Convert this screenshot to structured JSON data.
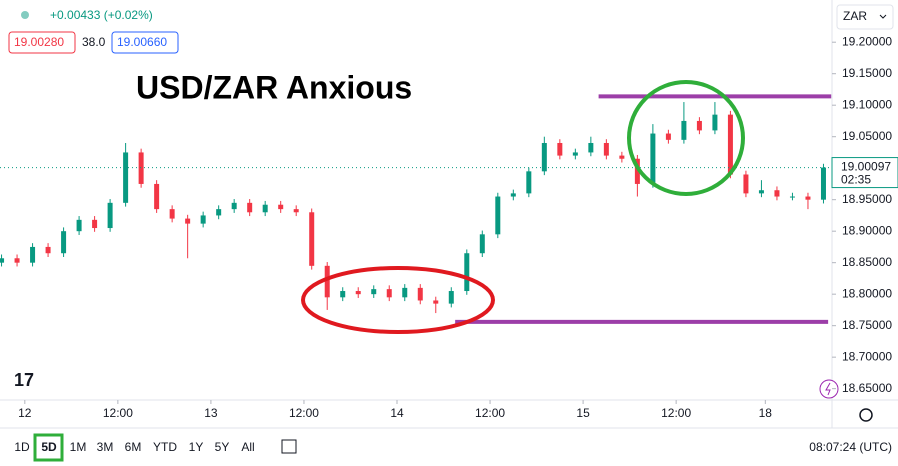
{
  "header": {
    "change": "+0.00433 (+0.02%)",
    "bid": "19.00280",
    "spread": "38.0",
    "ask": "19.00660",
    "currency": "ZAR"
  },
  "chart_data": {
    "type": "candlestick",
    "title": "USD/ZAR Anxious",
    "x": [
      -3,
      -1,
      1,
      3,
      5,
      7,
      9,
      11,
      13,
      15,
      17,
      19,
      21,
      23,
      25,
      27,
      29,
      31,
      33,
      35,
      37,
      39,
      41,
      43,
      45,
      47,
      49,
      51,
      53,
      55,
      57,
      59,
      61,
      63,
      65,
      67,
      69,
      71,
      73,
      75,
      77,
      79,
      81,
      83,
      85,
      87,
      89,
      91,
      93,
      95,
      97,
      99,
      101,
      103
    ],
    "open": [
      18.85,
      18.857,
      18.85,
      18.875,
      18.865,
      18.9,
      18.918,
      18.905,
      18.945,
      19.025,
      18.975,
      18.935,
      18.92,
      18.912,
      18.925,
      18.935,
      18.945,
      18.93,
      18.942,
      18.935,
      18.93,
      18.845,
      18.795,
      18.805,
      18.8,
      18.808,
      18.795,
      18.81,
      18.79,
      18.785,
      18.805,
      18.865,
      18.895,
      18.955,
      18.96,
      18.995,
      19.04,
      19.02,
      19.025,
      19.04,
      19.02,
      19.015,
      18.975,
      19.055,
      19.045,
      19.075,
      19.06,
      19.085,
      18.99,
      18.96,
      18.965,
      18.955,
      18.955,
      18.95
    ],
    "high": [
      18.863,
      18.863,
      18.881,
      18.881,
      18.906,
      18.924,
      18.924,
      18.951,
      19.04,
      19.031,
      18.981,
      18.941,
      18.926,
      18.931,
      18.941,
      18.951,
      18.951,
      18.948,
      18.948,
      18.941,
      18.936,
      18.851,
      18.811,
      18.811,
      18.814,
      18.814,
      18.816,
      18.816,
      18.796,
      18.811,
      18.871,
      18.901,
      18.961,
      18.966,
      19.001,
      19.05,
      19.046,
      19.031,
      19.05,
      19.046,
      19.026,
      19.021,
      19.07,
      19.061,
      19.105,
      19.081,
      19.105,
      19.091,
      18.996,
      18.981,
      18.971,
      18.961,
      18.961,
      19.007
    ],
    "low": [
      18.844,
      18.844,
      18.844,
      18.859,
      18.859,
      18.894,
      18.899,
      18.899,
      18.939,
      18.969,
      18.929,
      18.914,
      18.857,
      18.906,
      18.919,
      18.929,
      18.924,
      18.924,
      18.929,
      18.924,
      18.839,
      18.775,
      18.789,
      18.794,
      18.794,
      18.789,
      18.789,
      18.784,
      18.77,
      18.779,
      18.799,
      18.859,
      18.889,
      18.949,
      18.954,
      18.989,
      19.014,
      19.014,
      19.019,
      19.014,
      19.009,
      18.955,
      18.969,
      19.039,
      19.039,
      19.054,
      19.054,
      18.984,
      18.954,
      18.954,
      18.949,
      18.949,
      18.935,
      18.944
    ],
    "close": [
      18.857,
      18.85,
      18.875,
      18.865,
      18.9,
      18.918,
      18.905,
      18.945,
      19.025,
      18.975,
      18.935,
      18.92,
      18.912,
      18.925,
      18.935,
      18.945,
      18.93,
      18.942,
      18.935,
      18.93,
      18.845,
      18.795,
      18.805,
      18.8,
      18.808,
      18.795,
      18.81,
      18.79,
      18.785,
      18.805,
      18.865,
      18.895,
      18.955,
      18.96,
      18.995,
      19.04,
      19.02,
      19.025,
      19.04,
      19.02,
      19.015,
      18.975,
      19.055,
      19.045,
      19.075,
      19.06,
      19.085,
      18.99,
      18.96,
      18.965,
      18.955,
      18.955,
      18.95,
      19.001
    ],
    "up_color": "#089981",
    "down_color": "#f23645",
    "xlim": [
      -3.2,
      104.1
    ],
    "xticks": [
      {
        "value": 0,
        "label": "12"
      },
      {
        "value": 12,
        "label": "12:00"
      },
      {
        "value": 24,
        "label": "13"
      },
      {
        "value": 36,
        "label": "12:00"
      },
      {
        "value": 48,
        "label": "14"
      },
      {
        "value": 60,
        "label": "12:00"
      },
      {
        "value": 72,
        "label": "15"
      },
      {
        "value": 84,
        "label": "12:00"
      },
      {
        "value": 95.5,
        "label": "18"
      }
    ],
    "ylim": [
      18.632,
      19.267
    ],
    "yticks": [
      {
        "value": 19.2,
        "label": "19.20000"
      },
      {
        "value": 19.15,
        "label": "19.15000"
      },
      {
        "value": 19.1,
        "label": "19.10000"
      },
      {
        "value": 19.05,
        "label": "19.05000"
      },
      {
        "value": 18.95,
        "label": "18.95000"
      },
      {
        "value": 18.9,
        "label": "18.90000"
      },
      {
        "value": 18.85,
        "label": "18.85000"
      },
      {
        "value": 18.8,
        "label": "18.80000"
      },
      {
        "value": 18.75,
        "label": "18.75000"
      },
      {
        "value": 18.7,
        "label": "18.70000"
      },
      {
        "value": 18.65,
        "label": "18.65000"
      }
    ],
    "last_price": 19.00097,
    "countdown": "02:35",
    "levels": [
      {
        "value": 19.114,
        "x": [
          74,
          104
        ],
        "color": "#9c3ea8"
      },
      {
        "value": 18.756,
        "x": [
          55.5,
          103.6
        ],
        "color": "#9c3ea8"
      }
    ]
  },
  "toolbar": {
    "ranges": [
      "1D",
      "5D",
      "1M",
      "3M",
      "6M",
      "YTD",
      "1Y",
      "5Y",
      "All"
    ],
    "active": 1,
    "time": "08:07:24 (UTC)"
  }
}
